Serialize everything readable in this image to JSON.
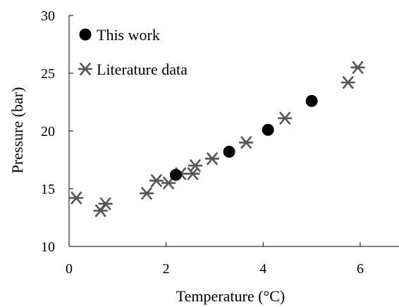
{
  "chart_data": {
    "type": "scatter",
    "xlabel": "Temperature (°C)",
    "ylabel": "Pressure (bar)",
    "xlim": [
      0,
      6.8
    ],
    "ylim": [
      10,
      30
    ],
    "xticks": [
      0,
      2,
      4,
      6
    ],
    "yticks": [
      10,
      15,
      20,
      25,
      30
    ],
    "grid": false,
    "legend_position": "top-left",
    "series": [
      {
        "name": "This work",
        "marker": "filled-circle",
        "color": "#000000",
        "x": [
          2.2,
          3.3,
          4.1,
          5.0
        ],
        "y": [
          16.2,
          18.2,
          20.1,
          22.6
        ]
      },
      {
        "name": "Literature data",
        "marker": "asterisk",
        "color": "#555555",
        "x": [
          0.15,
          0.65,
          0.75,
          1.6,
          1.8,
          2.05,
          2.3,
          2.55,
          2.6,
          2.95,
          3.65,
          4.45,
          5.75,
          5.95
        ],
        "y": [
          14.2,
          13.1,
          13.7,
          14.6,
          15.7,
          15.5,
          16.3,
          16.3,
          17.0,
          17.6,
          19.0,
          21.1,
          24.2,
          25.5
        ]
      }
    ]
  }
}
